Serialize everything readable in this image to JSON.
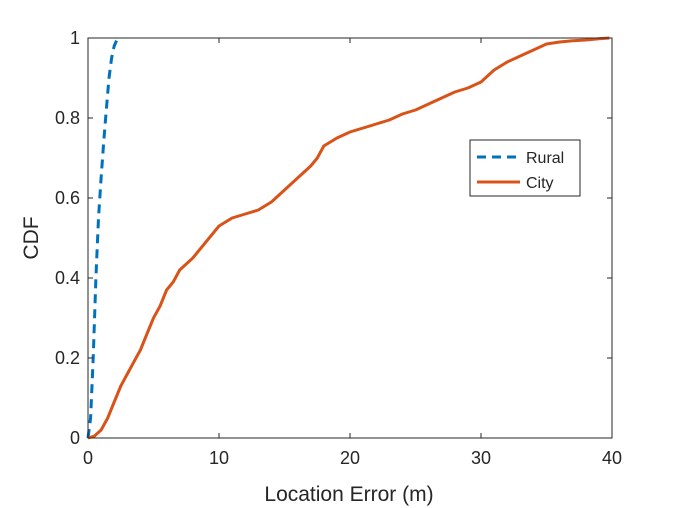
{
  "chart_data": {
    "type": "line",
    "title": "",
    "xlabel": "Location Error (m)",
    "ylabel": "CDF",
    "xlim": [
      0,
      40
    ],
    "ylim": [
      0,
      1
    ],
    "xticks": [
      "0",
      "10",
      "20",
      "30",
      "40"
    ],
    "yticks": [
      "0",
      "0.2",
      "0.4",
      "0.6",
      "0.8",
      "1"
    ],
    "grid": false,
    "legend_position": "right",
    "series": [
      {
        "name": "Rural",
        "color": "#0072BD",
        "dash": "dashed",
        "points": [
          [
            0,
            0
          ],
          [
            0.2,
            0.05
          ],
          [
            0.4,
            0.2
          ],
          [
            0.6,
            0.4
          ],
          [
            0.8,
            0.55
          ],
          [
            1.0,
            0.65
          ],
          [
            1.2,
            0.74
          ],
          [
            1.4,
            0.82
          ],
          [
            1.6,
            0.9
          ],
          [
            1.8,
            0.95
          ],
          [
            2.0,
            0.98
          ],
          [
            2.2,
            0.995
          ]
        ]
      },
      {
        "name": "City",
        "color": "#D95319",
        "dash": "solid",
        "points": [
          [
            0,
            0
          ],
          [
            0.5,
            0.005
          ],
          [
            1,
            0.02
          ],
          [
            1.5,
            0.05
          ],
          [
            2,
            0.09
          ],
          [
            2.5,
            0.13
          ],
          [
            3,
            0.16
          ],
          [
            3.5,
            0.19
          ],
          [
            4,
            0.22
          ],
          [
            4.5,
            0.26
          ],
          [
            5,
            0.3
          ],
          [
            5.5,
            0.33
          ],
          [
            6,
            0.37
          ],
          [
            6.5,
            0.39
          ],
          [
            7,
            0.42
          ],
          [
            8,
            0.45
          ],
          [
            9,
            0.49
          ],
          [
            10,
            0.53
          ],
          [
            11,
            0.55
          ],
          [
            12,
            0.56
          ],
          [
            13,
            0.57
          ],
          [
            14,
            0.59
          ],
          [
            15,
            0.62
          ],
          [
            16,
            0.65
          ],
          [
            17,
            0.68
          ],
          [
            17.5,
            0.7
          ],
          [
            18,
            0.73
          ],
          [
            19,
            0.75
          ],
          [
            20,
            0.765
          ],
          [
            21,
            0.775
          ],
          [
            22,
            0.785
          ],
          [
            23,
            0.795
          ],
          [
            24,
            0.81
          ],
          [
            25,
            0.82
          ],
          [
            26,
            0.835
          ],
          [
            27,
            0.85
          ],
          [
            28,
            0.865
          ],
          [
            29,
            0.875
          ],
          [
            30,
            0.89
          ],
          [
            31,
            0.92
          ],
          [
            32,
            0.94
          ],
          [
            33,
            0.955
          ],
          [
            34,
            0.97
          ],
          [
            35,
            0.985
          ],
          [
            36,
            0.99
          ],
          [
            37,
            0.993
          ],
          [
            38,
            0.995
          ],
          [
            39,
            0.998
          ],
          [
            39.8,
            1.0
          ]
        ]
      }
    ]
  }
}
